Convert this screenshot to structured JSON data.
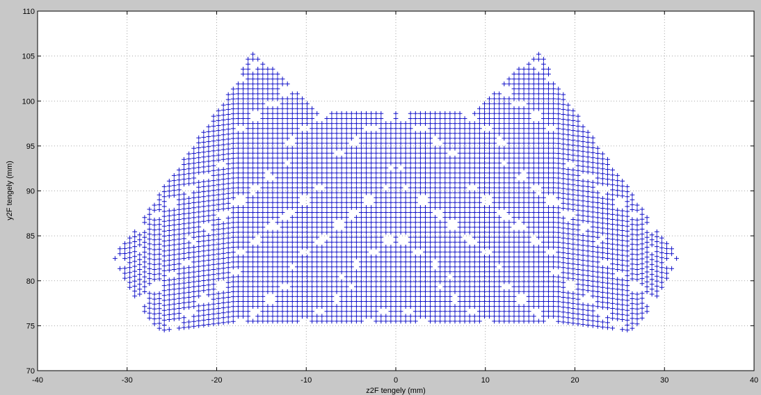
{
  "chart_data": {
    "type": "scatter",
    "title": "",
    "xlabel": "z2F tengely (mm)",
    "ylabel": "y2F tengely (mm)",
    "xlim": [
      -40,
      40
    ],
    "ylim": [
      70,
      110
    ],
    "xticks": [
      -40,
      -30,
      -20,
      -10,
      0,
      10,
      20,
      30,
      40
    ],
    "yticks": [
      70,
      75,
      80,
      85,
      90,
      95,
      100,
      105,
      110
    ],
    "grid": true,
    "marker": "+",
    "series_color": "#1010c8",
    "approximate_extent": {
      "x_range": [
        -31.5,
        31.5
      ],
      "y_range": [
        74.5,
        105.7
      ],
      "top_peaks": [
        [
          -16,
          105.7
        ],
        [
          16,
          105.7
        ]
      ],
      "center_top_y": 99
    },
    "point_grid_step": {
      "x": 0.55,
      "y": 0.55
    },
    "symmetry": "mirror about x = 0"
  }
}
